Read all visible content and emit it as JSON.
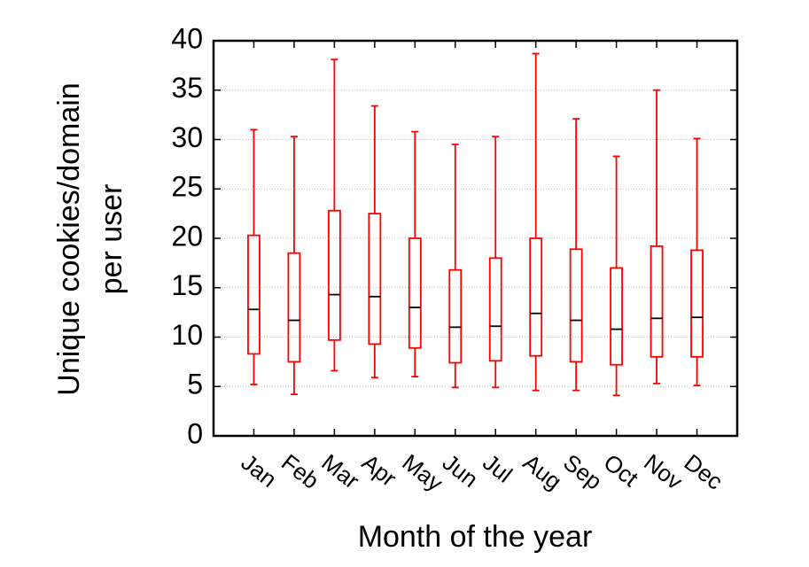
{
  "chart_data": {
    "type": "boxplot",
    "xlabel": "Month of the year",
    "ylabel": [
      "Unique cookies/domain",
      "per user"
    ],
    "categories": [
      "Jan",
      "Feb",
      "Mar",
      "Apr",
      "May",
      "Jun",
      "Jul",
      "Aug",
      "Sep",
      "Oct",
      "Nov",
      "Dec"
    ],
    "boxes": [
      {
        "whislo": 5.2,
        "q1": 8.3,
        "median": 12.8,
        "q3": 20.3,
        "whishi": 31
      },
      {
        "whislo": 4.2,
        "q1": 7.5,
        "median": 11.7,
        "q3": 18.5,
        "whishi": 30.3
      },
      {
        "whislo": 6.6,
        "q1": 9.7,
        "median": 14.3,
        "q3": 22.8,
        "whishi": 38.1
      },
      {
        "whislo": 5.9,
        "q1": 9.3,
        "median": 14.1,
        "q3": 22.5,
        "whishi": 33.4
      },
      {
        "whislo": 6,
        "q1": 8.9,
        "median": 13,
        "q3": 20,
        "whishi": 30.8
      },
      {
        "whislo": 4.9,
        "q1": 7.4,
        "median": 11,
        "q3": 16.8,
        "whishi": 29.5
      },
      {
        "whislo": 4.9,
        "q1": 7.6,
        "median": 11.1,
        "q3": 18,
        "whishi": 30.3
      },
      {
        "whislo": 4.6,
        "q1": 8.1,
        "median": 12.4,
        "q3": 20,
        "whishi": 38.7
      },
      {
        "whislo": 4.6,
        "q1": 7.5,
        "median": 11.7,
        "q3": 18.9,
        "whishi": 32.1
      },
      {
        "whislo": 4.1,
        "q1": 7.2,
        "median": 10.8,
        "q3": 17,
        "whishi": 28.3
      },
      {
        "whislo": 5.3,
        "q1": 8,
        "median": 11.9,
        "q3": 19.2,
        "whishi": 35
      },
      {
        "whislo": 5.1,
        "q1": 8,
        "median": 12,
        "q3": 18.8,
        "whishi": 30.1
      }
    ],
    "color": "#ff0000",
    "median_color": "#000000",
    "ylim": [
      0,
      40
    ],
    "yticks": [
      0,
      5,
      10,
      15,
      20,
      25,
      30,
      35,
      40
    ],
    "grid": true
  }
}
